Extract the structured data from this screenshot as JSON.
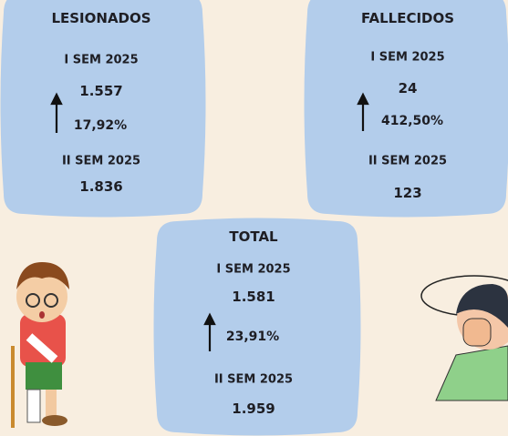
{
  "cards": [
    {
      "title": "LESIONADOS",
      "first_label": "I SEM 2025",
      "first_value": "1.557",
      "change": "17,92%",
      "second_label": "II SEM 2025",
      "second_value": "1.836"
    },
    {
      "title": "FALLECIDOS",
      "first_label": "I SEM 2025",
      "first_value": "24",
      "change": "412,50%",
      "second_label": "II SEM 2025",
      "second_value": "123"
    },
    {
      "title": "TOTAL",
      "first_label": "I SEM 2025",
      "first_value": "1.581",
      "change": "23,91%",
      "second_label": "II SEM 2025",
      "second_value": "1.959"
    }
  ]
}
